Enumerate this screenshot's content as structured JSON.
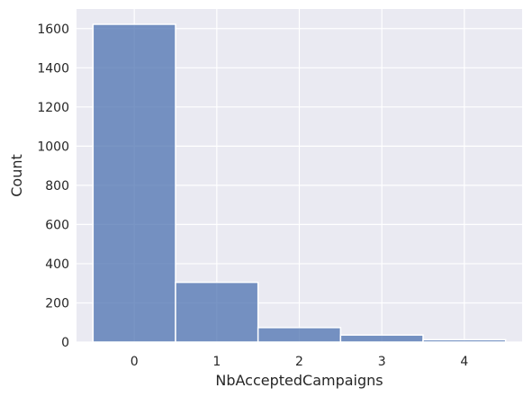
{
  "chart_data": {
    "type": "bar",
    "categories": [
      "0",
      "1",
      "2",
      "3",
      "4"
    ],
    "x": [
      0,
      1,
      2,
      3,
      4
    ],
    "values": [
      1622,
      305,
      74,
      36,
      12
    ],
    "xlabel": "NbAcceptedCampaigns",
    "ylabel": "Count",
    "ylim": [
      0,
      1700
    ],
    "xlim": [
      -0.7,
      4.7
    ],
    "yticks": [
      0,
      200,
      400,
      600,
      800,
      1000,
      1200,
      1400,
      1600
    ],
    "grid": true,
    "colors": {
      "bar": "#4c72b0",
      "background": "#eaeaf2",
      "grid": "#ffffff"
    }
  }
}
